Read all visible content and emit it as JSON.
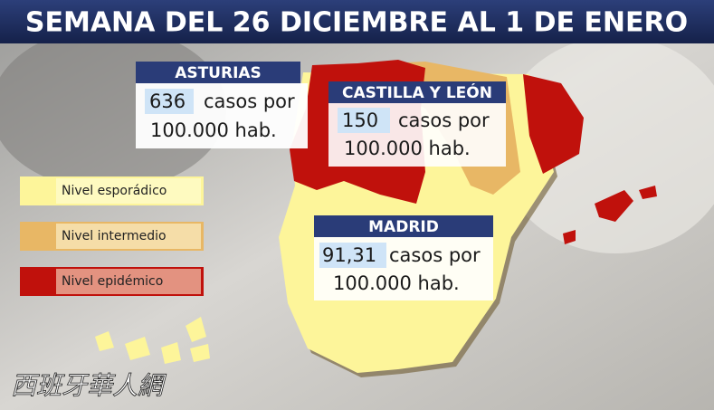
{
  "header": {
    "title": "SEMANA DEL 26 DICIEMBRE AL 1 DE ENERO"
  },
  "legend": [
    {
      "label": "Nivel esporádico",
      "color": "#fdf59a"
    },
    {
      "label": "Nivel intermedio",
      "color": "#e8b765"
    },
    {
      "label": "Nivel epidémico",
      "color": "#c0110c"
    }
  ],
  "callouts": [
    {
      "region": "ASTURIAS",
      "value": "636",
      "text": "casos por",
      "unit": "100.000 hab."
    },
    {
      "region": "CASTILLA Y LEÓN",
      "value": "150",
      "text": "casos por",
      "unit": "100.000 hab."
    },
    {
      "region": "MADRID",
      "value": "91,31",
      "text": "casos por",
      "unit": "100.000 hab."
    }
  ],
  "watermark": "西班牙華人網"
}
